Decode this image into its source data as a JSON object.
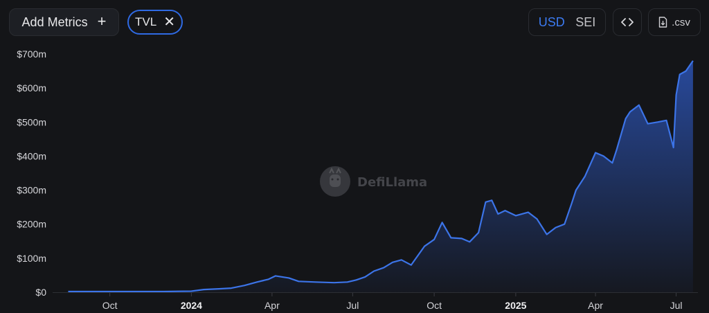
{
  "toolbar": {
    "add_metrics_label": "Add Metrics",
    "add_icon": "plus-icon",
    "metric_chip_label": "TVL",
    "chip_close_icon": "close-icon",
    "currency_options": [
      "USD",
      "SEI"
    ],
    "currency_selected": "USD",
    "embed_icon": "code-icon",
    "download_icon": "file-download-icon",
    "csv_label": ".csv"
  },
  "watermark": {
    "text": "DefiLlama",
    "icon": "llama-logo-icon"
  },
  "colors": {
    "line": "#3c74e8",
    "background": "#141518",
    "accent": "#2f6ae3"
  },
  "chart_data": {
    "type": "area",
    "title": "",
    "xlabel": "",
    "ylabel": "",
    "y_ticks": [
      "$0",
      "$100m",
      "$200m",
      "$300m",
      "$400m",
      "$500m",
      "$600m",
      "$700m"
    ],
    "ylim": [
      0,
      700
    ],
    "y_unit": "$m",
    "x_ticks": [
      {
        "label": "Oct",
        "date": "2023-10-01",
        "bold": false
      },
      {
        "label": "2024",
        "date": "2024-01-01",
        "bold": true
      },
      {
        "label": "Apr",
        "date": "2024-04-01",
        "bold": false
      },
      {
        "label": "Jul",
        "date": "2024-07-01",
        "bold": false
      },
      {
        "label": "Oct",
        "date": "2024-10-01",
        "bold": false
      },
      {
        "label": "2025",
        "date": "2025-01-01",
        "bold": true
      },
      {
        "label": "Apr",
        "date": "2025-04-01",
        "bold": false
      },
      {
        "label": "Jul",
        "date": "2025-07-01",
        "bold": false
      }
    ],
    "grid": false,
    "legend": "none",
    "series": [
      {
        "x": [
          "2023-08-15",
          "2023-09-01",
          "2023-10-01",
          "2023-11-01",
          "2023-12-01",
          "2024-01-01",
          "2024-01-15",
          "2024-02-01",
          "2024-02-15",
          "2024-03-01",
          "2024-03-15",
          "2024-03-28",
          "2024-04-05",
          "2024-04-20",
          "2024-05-01",
          "2024-05-20",
          "2024-06-10",
          "2024-06-25",
          "2024-07-05",
          "2024-07-15",
          "2024-07-25",
          "2024-08-05",
          "2024-08-15",
          "2024-08-25",
          "2024-09-05",
          "2024-09-20",
          "2024-10-01",
          "2024-10-10",
          "2024-10-20",
          "2024-11-01",
          "2024-11-10",
          "2024-11-20",
          "2024-11-28",
          "2024-12-05",
          "2024-12-12",
          "2024-12-20",
          "2025-01-01",
          "2025-01-15",
          "2025-01-25",
          "2025-02-05",
          "2025-02-15",
          "2025-02-25",
          "2025-03-05",
          "2025-03-10",
          "2025-03-20",
          "2025-04-01",
          "2025-04-10",
          "2025-04-20",
          "2025-04-25",
          "2025-05-05",
          "2025-05-10",
          "2025-05-20",
          "2025-05-30",
          "2025-06-10",
          "2025-06-20",
          "2025-06-28",
          "2025-07-01",
          "2025-07-05",
          "2025-07-12",
          "2025-07-20"
        ],
        "values": [
          2,
          2,
          2,
          2,
          2,
          3,
          8,
          10,
          12,
          20,
          30,
          38,
          48,
          42,
          32,
          30,
          28,
          30,
          36,
          45,
          62,
          72,
          88,
          95,
          80,
          135,
          155,
          205,
          160,
          158,
          148,
          175,
          265,
          270,
          230,
          240,
          225,
          235,
          215,
          170,
          190,
          200,
          260,
          300,
          340,
          410,
          400,
          380,
          420,
          510,
          530,
          550,
          495,
          500,
          505,
          425,
          580,
          640,
          650,
          680
        ]
      }
    ]
  }
}
